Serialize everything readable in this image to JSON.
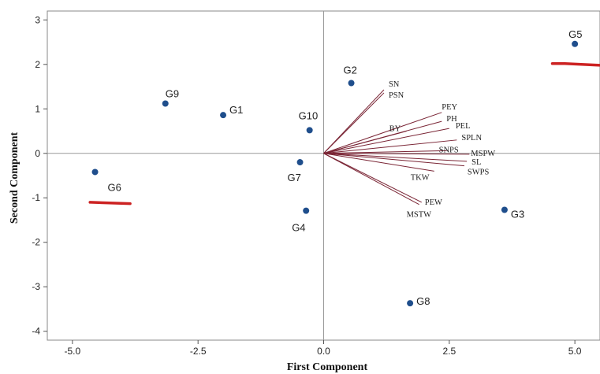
{
  "chart_data": {
    "type": "biplot",
    "xlabel": "First Component",
    "ylabel": "Second Component",
    "xlim": [
      -5.5,
      5.5
    ],
    "ylim": [
      -4.2,
      3.2
    ],
    "xticks": [
      -5.0,
      -2.5,
      0.0,
      2.5,
      5.0
    ],
    "xtick_labels": [
      "-5.0",
      "-2.5",
      "0.0",
      "2.5",
      "5.0"
    ],
    "yticks": [
      -4,
      -3,
      -2,
      -1,
      0,
      1,
      2,
      3
    ],
    "ytick_labels": [
      "-4",
      "-3",
      "-2",
      "-1",
      "0",
      "1",
      "2",
      "3"
    ],
    "reference_lines": {
      "x": 0,
      "y": 0
    },
    "point_color": "#1f4e8c",
    "vector_color": "#7a2535",
    "marker_color": "#cc2222",
    "points": [
      {
        "label": "G1",
        "x": -2.0,
        "y": 0.86
      },
      {
        "label": "G2",
        "x": 0.55,
        "y": 1.58
      },
      {
        "label": "G3",
        "x": 3.6,
        "y": -1.27
      },
      {
        "label": "G4",
        "x": -0.35,
        "y": -1.29
      },
      {
        "label": "G5",
        "x": 5.0,
        "y": 2.46
      },
      {
        "label": "G6",
        "x": -4.55,
        "y": -0.42
      },
      {
        "label": "G7",
        "x": -0.47,
        "y": -0.2
      },
      {
        "label": "G8",
        "x": 1.72,
        "y": -3.37
      },
      {
        "label": "G9",
        "x": -3.15,
        "y": 1.12
      },
      {
        "label": "G10",
        "x": -0.28,
        "y": 0.52
      }
    ],
    "vectors": [
      {
        "label": "SN",
        "x": 1.2,
        "y": 1.43
      },
      {
        "label": "PSN",
        "x": 1.2,
        "y": 1.36
      },
      {
        "label": "PEY",
        "x": 2.35,
        "y": 0.92
      },
      {
        "label": "PH",
        "x": 2.35,
        "y": 0.72
      },
      {
        "label": "BY",
        "x": 1.65,
        "y": 0.5
      },
      {
        "label": "PEL",
        "x": 2.5,
        "y": 0.56
      },
      {
        "label": "SPLN",
        "x": 2.65,
        "y": 0.3
      },
      {
        "label": "SNPS",
        "x": 2.45,
        "y": 0.06
      },
      {
        "label": "MSPW",
        "x": 2.9,
        "y": -0.02
      },
      {
        "label": "SL",
        "x": 2.85,
        "y": -0.18
      },
      {
        "label": "SWPS",
        "x": 2.8,
        "y": -0.28
      },
      {
        "label": "TKW",
        "x": 2.2,
        "y": -0.4
      },
      {
        "label": "PEW",
        "x": 1.95,
        "y": -1.1
      },
      {
        "label": "MSTW",
        "x": 1.9,
        "y": -1.15
      }
    ],
    "annotation_marks": [
      {
        "x": [
          4.55,
          4.8,
          5.5
        ],
        "y": [
          2.02,
          2.02,
          1.98
        ]
      },
      {
        "x": [
          -4.65,
          -3.85
        ],
        "y": [
          -1.1,
          -1.13
        ]
      }
    ]
  }
}
